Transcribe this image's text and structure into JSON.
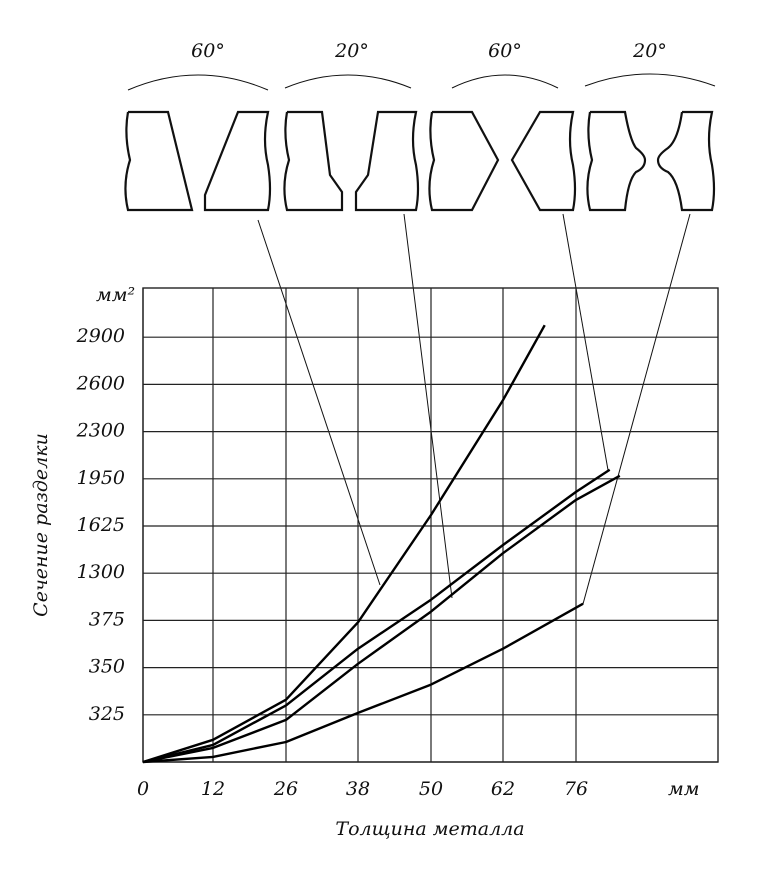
{
  "chart_data": {
    "type": "line",
    "annotations": [
      "60°",
      "20°",
      "60°",
      "20°"
    ],
    "y_unit": "мм²",
    "x_unit": "мм",
    "ylabel": "Сечение разделки",
    "xlabel": "Толщина металла",
    "xlim": [
      0,
      100
    ],
    "ylim": [
      0,
      3200
    ],
    "xticks": [
      0,
      12,
      26,
      38,
      50,
      62,
      76
    ],
    "yticks": [
      0,
      325,
      350,
      375,
      1300,
      1625,
      1950,
      2300,
      2600,
      2900
    ],
    "scale": "piecewise",
    "grid": true,
    "series": [
      {
        "color": "#000000",
        "x": [
          0,
          12,
          26,
          38,
          50,
          62,
          70
        ],
        "values": [
          0,
          153,
          333,
          374,
          1701,
          2500,
          2973
        ]
      },
      {
        "color": "#000000",
        "x": [
          0,
          12,
          26,
          38,
          50,
          62,
          76,
          83.4
        ],
        "values": [
          0,
          97,
          290,
          352,
          548,
          1438,
          1805,
          1972
        ]
      },
      {
        "color": "#000000",
        "x": [
          0,
          12,
          26,
          38,
          50,
          62,
          76,
          81.7
        ],
        "values": [
          0,
          118,
          330,
          360,
          780,
          1494,
          1860,
          2017
        ]
      },
      {
        "color": "#000000",
        "x": [
          0,
          12,
          26,
          38,
          50,
          62,
          77.2
        ],
        "values": [
          0,
          35,
          138,
          326,
          341,
          360,
          703
        ]
      }
    ]
  }
}
